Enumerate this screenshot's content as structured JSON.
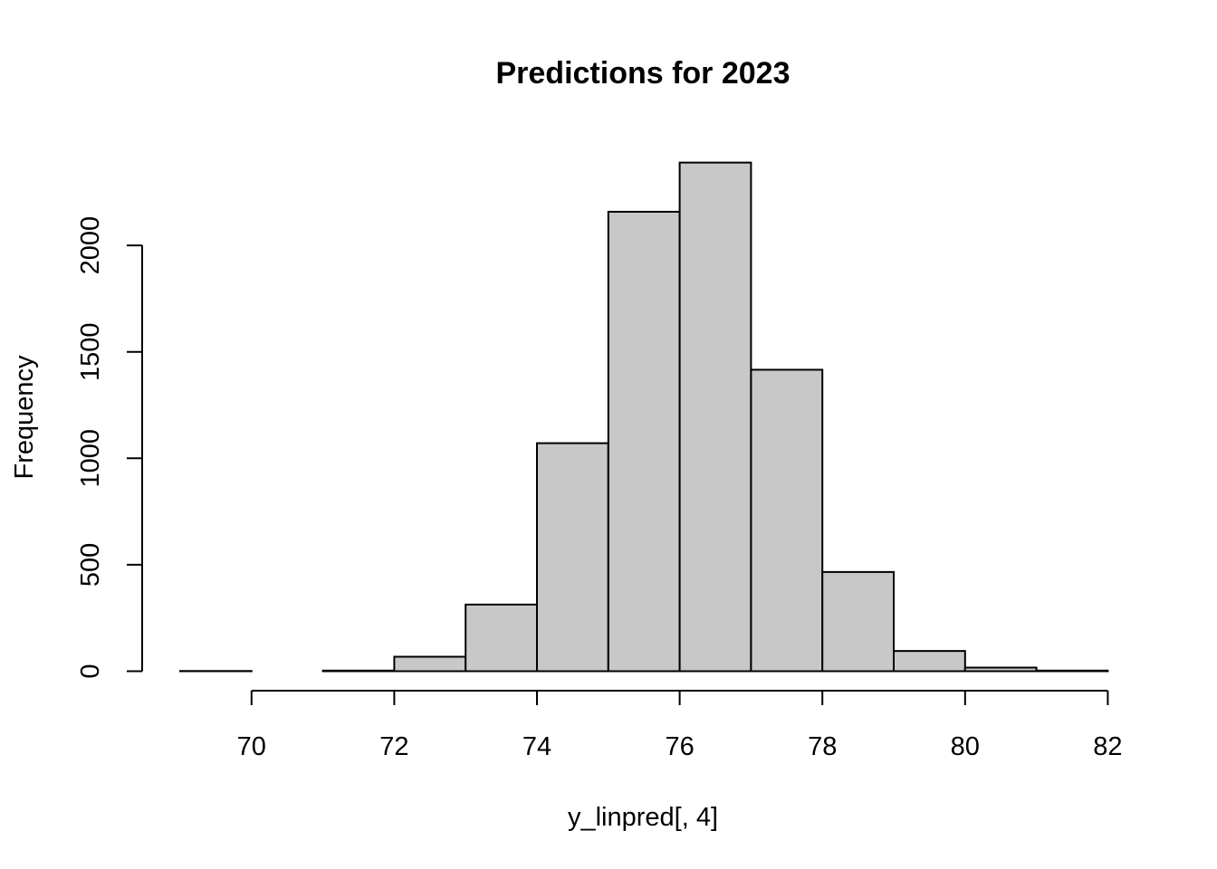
{
  "chart_data": {
    "type": "bar",
    "title": "Predictions for 2023",
    "xlabel": "y_linpred[, 4]",
    "ylabel": "Frequency",
    "bins": [
      {
        "start": 69,
        "end": 70,
        "count": 1
      },
      {
        "start": 70,
        "end": 71,
        "count": 0
      },
      {
        "start": 71,
        "end": 72,
        "count": 3
      },
      {
        "start": 72,
        "end": 73,
        "count": 68
      },
      {
        "start": 73,
        "end": 74,
        "count": 313
      },
      {
        "start": 74,
        "end": 75,
        "count": 1071
      },
      {
        "start": 75,
        "end": 76,
        "count": 2158
      },
      {
        "start": 76,
        "end": 77,
        "count": 2389
      },
      {
        "start": 77,
        "end": 78,
        "count": 1416
      },
      {
        "start": 78,
        "end": 79,
        "count": 466
      },
      {
        "start": 79,
        "end": 80,
        "count": 95
      },
      {
        "start": 80,
        "end": 81,
        "count": 17
      },
      {
        "start": 81,
        "end": 82,
        "count": 3
      }
    ],
    "xticks": [
      70,
      72,
      74,
      76,
      78,
      80,
      82
    ],
    "yticks": [
      0,
      500,
      1000,
      1500,
      2000
    ],
    "xlim": [
      69,
      82
    ],
    "ylim": [
      0,
      2389
    ],
    "bar_color": "#c8c8c8",
    "grid": false,
    "legend": "none"
  }
}
